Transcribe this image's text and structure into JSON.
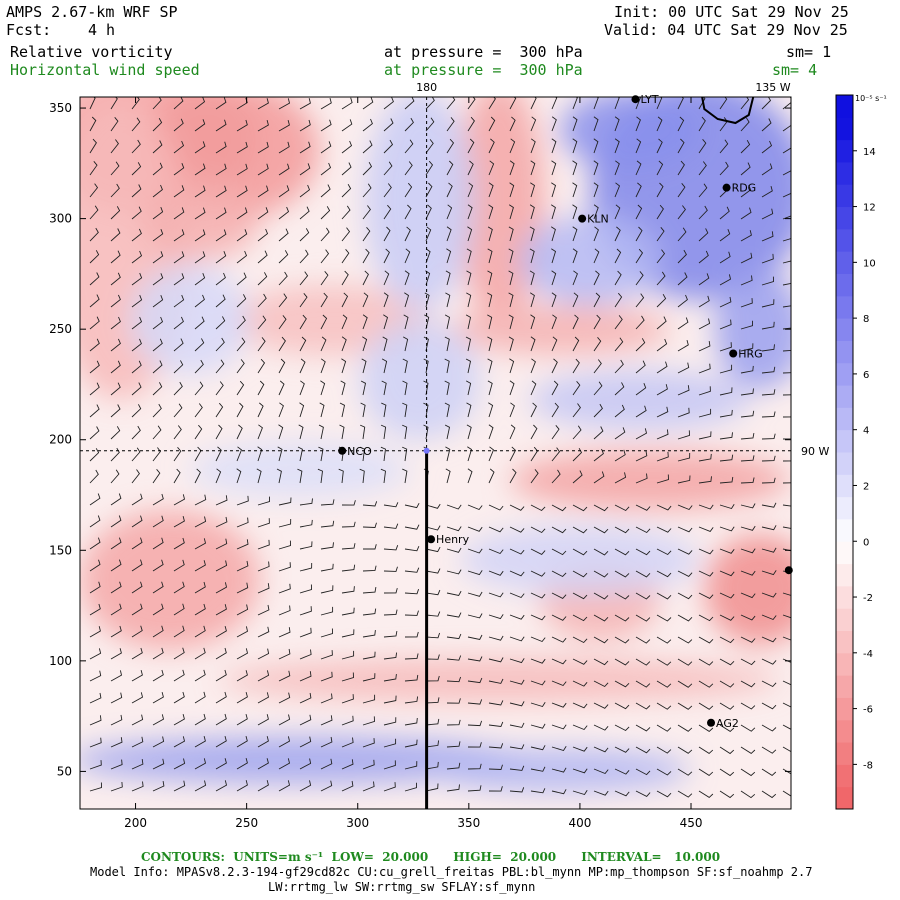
{
  "header": {
    "model": "AMPS 2.67-km WRF SP",
    "fcst_label": "Fcst:",
    "fcst_value": "4 h",
    "init": "Init: 00 UTC Sat 29 Nov 25",
    "valid": "Valid: 04 UTC Sat 29 Nov 25",
    "field1": "Relative vorticity",
    "field1_level": "at pressure =  300 hPa",
    "field1_sm": "sm= 1",
    "field2": "Horizontal wind speed",
    "field2_level": "at pressure =  300 hPa",
    "field2_sm": "sm= 4"
  },
  "map": {
    "x_ticks": [
      "200",
      "250",
      "300",
      "350",
      "400",
      "450"
    ],
    "y_ticks": [
      "50",
      "100",
      "150",
      "200",
      "250",
      "300",
      "350"
    ],
    "x_ticks_values": [
      200,
      250,
      300,
      350,
      400,
      450
    ],
    "y_ticks_values": [
      50,
      100,
      150,
      200,
      250,
      300,
      350
    ],
    "x_range": [
      175,
      495
    ],
    "y_range": [
      33,
      355
    ],
    "meridian_label": "180",
    "corner_label": "135 W",
    "parallel_label": "90 W",
    "stations": [
      {
        "name": "LYT",
        "x": 425,
        "y": 354
      },
      {
        "name": "RDG",
        "x": 466,
        "y": 314
      },
      {
        "name": "KLN",
        "x": 401,
        "y": 300
      },
      {
        "name": "HRG",
        "x": 469,
        "y": 239
      },
      {
        "name": "NCO",
        "x": 293,
        "y": 195
      },
      {
        "name": "Henry",
        "x": 333,
        "y": 155
      },
      {
        "name": "AG2",
        "x": 459,
        "y": 72
      },
      {
        "name": "",
        "x": 494,
        "y": 141
      }
    ]
  },
  "colorbar": {
    "unit_label": "10⁻⁵ s⁻¹",
    "labels": [
      "14",
      "12",
      "10",
      "8",
      "6",
      "4",
      "2",
      "0",
      "-2",
      "-4",
      "-6",
      "-8"
    ],
    "values": [
      14,
      12,
      10,
      8,
      6,
      4,
      2,
      0,
      -2,
      -4,
      -6,
      -8
    ],
    "min": -9.6,
    "max": 16,
    "neg_color": "#f0676a",
    "pos_color": "#1010e0",
    "zero_color": "#ffffff"
  },
  "footer": {
    "contours": "CONTOURS:  UNITS=m s⁻¹  LOW=  20.000      HIGH=  20.000      INTERVAL=   10.000",
    "model_info": "Model Info: MPASv8.2.3-194-gf29cd82c CU:cu_grell_freitas PBL:bl_mynn MP:mp_thompson SF:sf_noahmp 2.7",
    "model_info2": "LW:rrtmg_lw SW:rrtmg_sw SFLAY:sf_mynn"
  },
  "colors": {
    "contour_text": "#1f8a1f"
  }
}
